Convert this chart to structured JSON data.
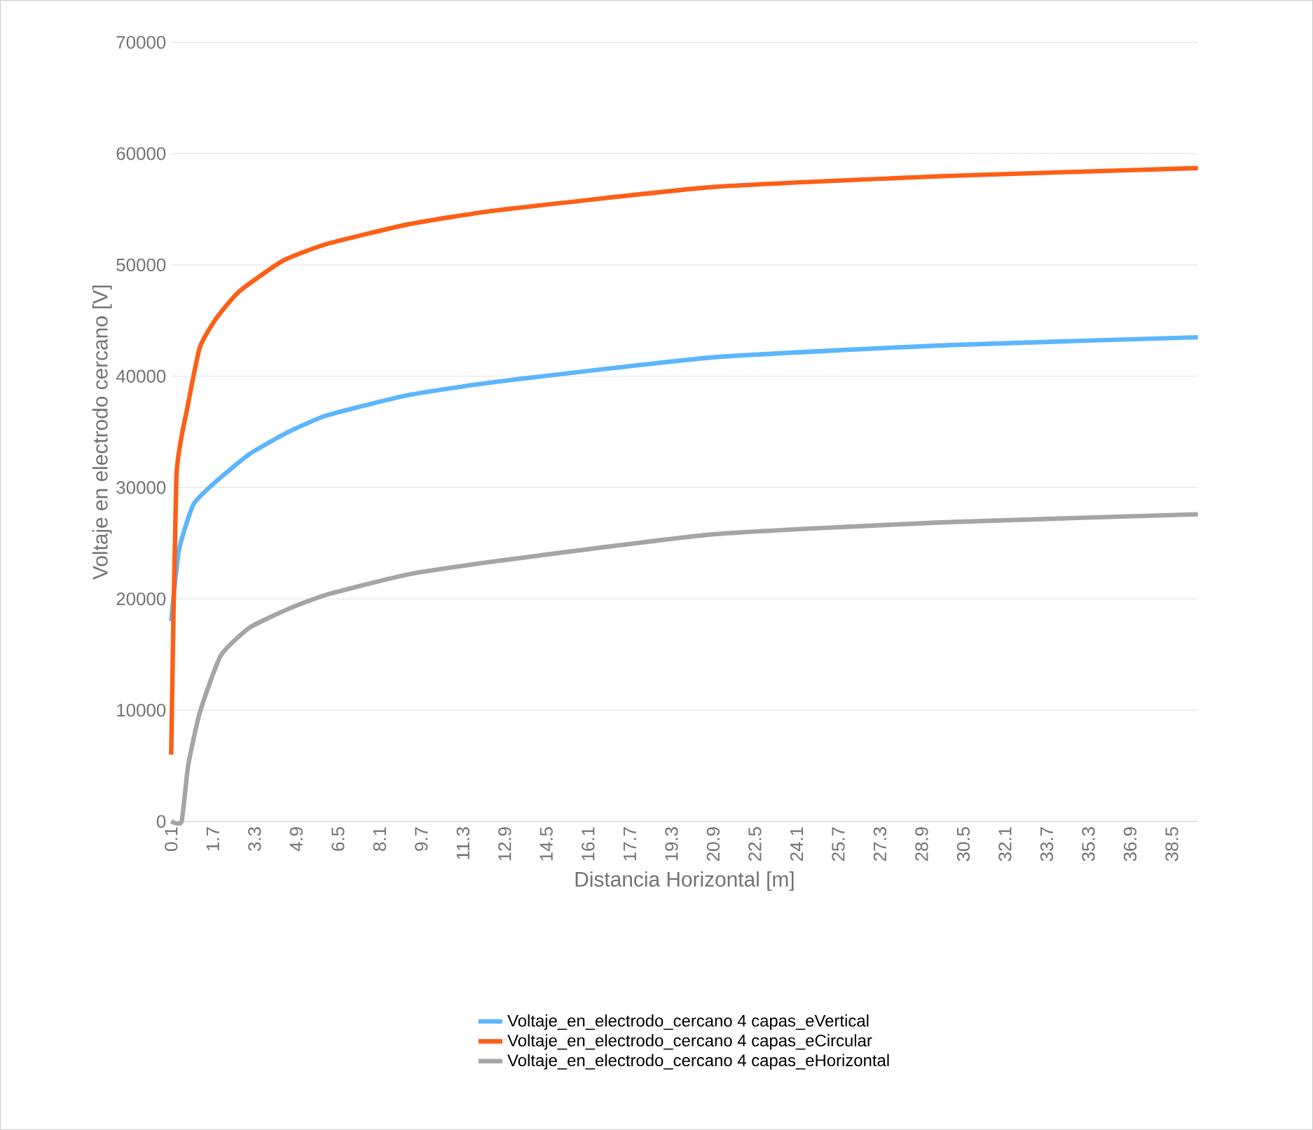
{
  "chart_data": {
    "type": "line",
    "xlabel": "Distancia Horizontal [m]",
    "ylabel": "Voltaje en electrodo cercano [V]",
    "xlim": [
      0.1,
      39.5
    ],
    "xticks": [
      0.1,
      1.7,
      3.3,
      4.9,
      6.5,
      8.1,
      9.7,
      11.3,
      12.9,
      14.5,
      16.1,
      17.7,
      19.3,
      20.9,
      22.5,
      24.1,
      25.7,
      27.3,
      28.9,
      30.5,
      32.1,
      33.7,
      35.3,
      36.9,
      38.5
    ],
    "ylim": [
      0,
      70000
    ],
    "yticks": [
      0,
      10000,
      20000,
      30000,
      40000,
      50000,
      60000,
      70000
    ],
    "grid": "y",
    "legend": "bottom",
    "marker": "none",
    "line_style": "solid",
    "series": [
      {
        "name": "Voltaje_en_electrodo_cercano 4 capas_eVertical",
        "color": "#5db6fb",
        "x": [
          0.1,
          0.4,
          0.96,
          1.8,
          3.1,
          4.6,
          6.1,
          9.2,
          12.6,
          20.9,
          30.0,
          39.5
        ],
        "values": [
          18000,
          24400,
          28500,
          30500,
          33000,
          35000,
          36500,
          38300,
          39500,
          41700,
          42800,
          43500
        ]
      },
      {
        "name": "Voltaje_en_electrodo_cercano 4 capas_eCircular",
        "color": "#fd5f17",
        "x": [
          0.1,
          0.3,
          0.75,
          1.2,
          1.8,
          2.7,
          4.4,
          6.1,
          9.2,
          12.6,
          20.9,
          30.0,
          39.5
        ],
        "values": [
          6000,
          31000,
          37500,
          42600,
          45100,
          47600,
          50400,
          51900,
          53650,
          54900,
          57000,
          58000,
          58700
        ]
      },
      {
        "name": "Voltaje_en_electrodo_cercano 4 capas_eHorizontal",
        "color": "#a5a5a5",
        "x": [
          0.1,
          0.5,
          0.75,
          1.2,
          2.0,
          3.1,
          4.6,
          6.1,
          9.2,
          12.6,
          20.9,
          30.0,
          39.5
        ],
        "values": [
          0,
          0,
          5000,
          9800,
          14900,
          17400,
          19100,
          20400,
          22200,
          23400,
          25800,
          26900,
          27600
        ]
      }
    ]
  }
}
